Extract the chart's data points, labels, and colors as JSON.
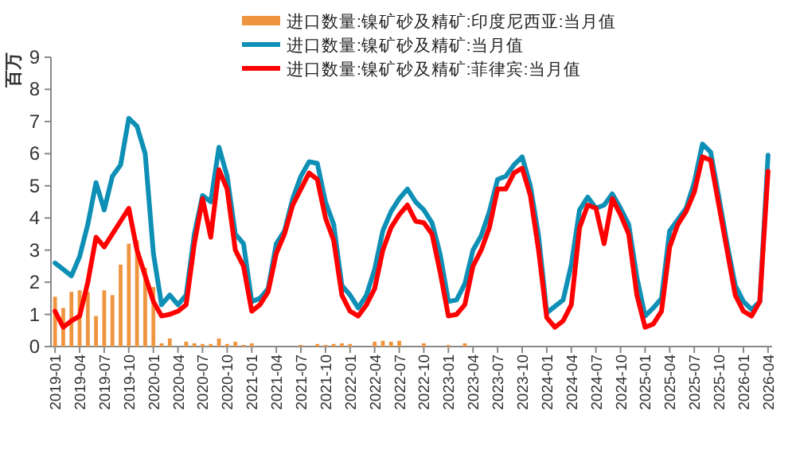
{
  "chart_data": {
    "type": "bar",
    "ylabel": "百万",
    "ylim": [
      0,
      9
    ],
    "yticks": [
      0,
      1,
      2,
      3,
      4,
      5,
      6,
      7,
      8,
      9
    ],
    "grid": false,
    "legend": "top",
    "categories": [
      "2019-01",
      null,
      null,
      "2019-04",
      null,
      null,
      "2019-07",
      null,
      null,
      "2019-10",
      null,
      null,
      "2020-01",
      null,
      null,
      "2020-04",
      null,
      null,
      "2020-07",
      null,
      null,
      "2020-10",
      null,
      null,
      "2021-01",
      null,
      null,
      "2021-04",
      null,
      null,
      "2021-07",
      null,
      null,
      "2021-10",
      null,
      null,
      "2022-01",
      null,
      null,
      "2022-04",
      null,
      null,
      "2022-07",
      null,
      null,
      "2022-10",
      null,
      null,
      "2023-01",
      null,
      null,
      "2023-04",
      null,
      null,
      "2023-07",
      null,
      null,
      "2023-10",
      null,
      null,
      "2024-01",
      null,
      null,
      "2024-04",
      null,
      null,
      "2024-07",
      null,
      null,
      "2024-10",
      null,
      null,
      "2025-01",
      null,
      null,
      "2025-04",
      null,
      null,
      "2025-07",
      null,
      null,
      "2025-10",
      null,
      null,
      "2026-01",
      null,
      null,
      "2026-04"
    ],
    "series": [
      {
        "name": "进口数量:镍矿砂及精矿:印度尼西亚:当月值",
        "color": "#f0953f",
        "values": [
          1.55,
          1.2,
          1.7,
          1.75,
          1.7,
          0.95,
          1.75,
          1.6,
          2.55,
          3.2,
          3.3,
          2.45,
          1.85,
          0.1,
          0.25,
          0,
          0.15,
          0.1,
          0.08,
          0.08,
          0.25,
          0.08,
          0.15,
          0.05,
          0.1,
          0,
          0,
          0,
          0,
          0,
          0.05,
          0,
          0.08,
          0.05,
          0.08,
          0.1,
          0.08,
          0,
          0,
          0.15,
          0.18,
          0.15,
          0.18,
          0,
          0,
          0.1,
          0,
          0,
          0.05,
          0,
          0.1,
          0,
          0,
          0,
          0,
          0,
          0,
          0,
          0,
          0,
          0,
          0,
          0,
          0,
          0,
          0,
          0,
          0,
          0,
          0,
          0,
          0,
          0,
          0,
          0,
          0,
          0,
          0,
          0,
          0,
          0,
          0,
          0,
          0,
          0,
          0,
          0,
          0
        ]
      },
      {
        "name": "进口数量:镍矿砂及精矿:当月值",
        "type": "line",
        "color": "#0e8fb5",
        "values": [
          2.6,
          2.4,
          2.2,
          2.8,
          3.8,
          5.1,
          4.25,
          5.3,
          5.65,
          7.1,
          6.85,
          6.0,
          2.9,
          1.3,
          1.6,
          1.3,
          1.6,
          3.5,
          4.7,
          4.5,
          6.2,
          5.3,
          3.5,
          3.2,
          1.4,
          1.5,
          1.8,
          3.2,
          3.6,
          4.6,
          5.3,
          5.75,
          5.7,
          4.5,
          3.8,
          1.9,
          1.6,
          1.2,
          1.6,
          2.4,
          3.6,
          4.2,
          4.6,
          4.9,
          4.5,
          4.25,
          3.85,
          2.86,
          1.4,
          1.45,
          1.95,
          3.0,
          3.45,
          4.2,
          5.2,
          5.3,
          5.65,
          5.9,
          5.0,
          3.45,
          1.05,
          1.25,
          1.45,
          2.55,
          4.25,
          4.65,
          4.3,
          4.4,
          4.75,
          4.3,
          3.8,
          2.15,
          0.95,
          1.2,
          1.5,
          3.6,
          3.95,
          4.3,
          5.1,
          6.3,
          6.05,
          4.65,
          3.2,
          1.9,
          1.4,
          1.15,
          1.4,
          5.95
        ]
      },
      {
        "name": "进口数量:镍矿砂及精矿:菲律宾:当月值",
        "type": "line",
        "color": "#ff0000",
        "values": [
          1.1,
          0.6,
          0.8,
          0.95,
          2.0,
          3.4,
          3.1,
          3.5,
          3.9,
          4.3,
          3.0,
          2.2,
          1.4,
          0.95,
          1.0,
          1.1,
          1.3,
          3.2,
          4.6,
          3.4,
          5.5,
          4.9,
          3.0,
          2.5,
          1.1,
          1.3,
          1.7,
          2.9,
          3.5,
          4.4,
          4.9,
          5.4,
          5.2,
          4.0,
          3.3,
          1.6,
          1.1,
          0.95,
          1.3,
          1.8,
          3.0,
          3.7,
          4.1,
          4.4,
          3.9,
          3.85,
          3.5,
          2.3,
          0.95,
          1.0,
          1.3,
          2.5,
          3.0,
          3.7,
          4.9,
          4.9,
          5.4,
          5.55,
          4.7,
          3.0,
          0.9,
          0.6,
          0.8,
          1.3,
          3.7,
          4.4,
          4.3,
          3.2,
          4.6,
          4.1,
          3.5,
          1.6,
          0.6,
          0.7,
          1.1,
          3.1,
          3.8,
          4.2,
          4.8,
          5.9,
          5.8,
          4.4,
          3.0,
          1.6,
          1.1,
          0.95,
          1.4,
          5.45
        ]
      }
    ]
  }
}
